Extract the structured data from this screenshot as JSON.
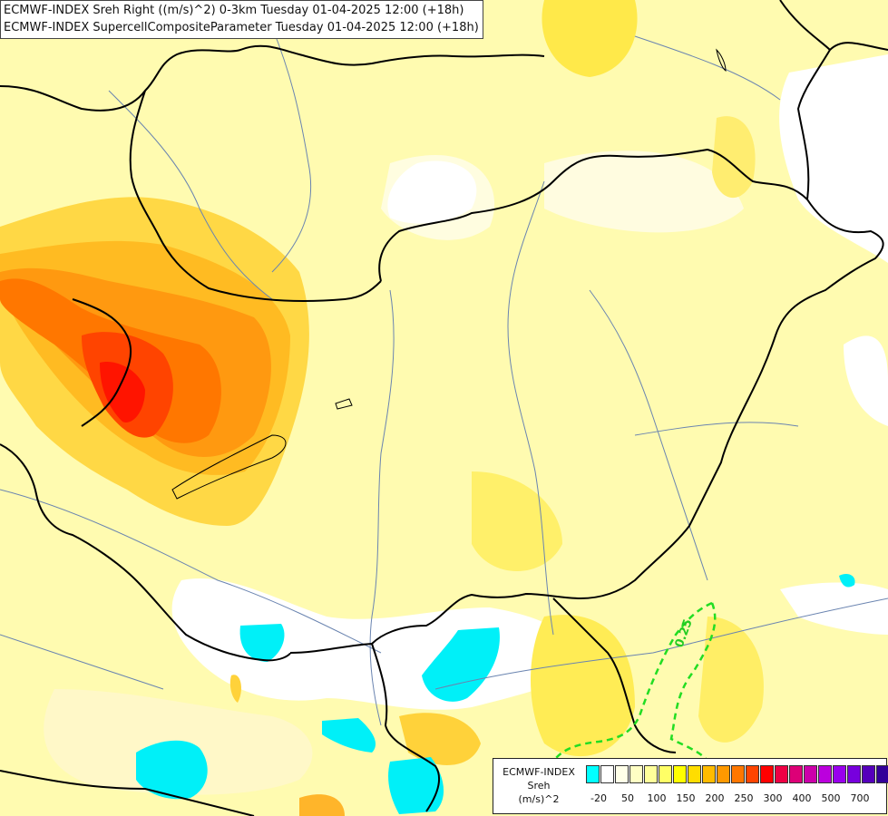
{
  "title_lines": [
    "ECMWF-INDEX Sreh Right ((m/s)^2) 0-3km Tuesday 01-04-2025 12:00 (+18h)",
    "ECMWF-INDEX SupercellCompositeParameter Tuesday 01-04-2025 12:00 (+18h)"
  ],
  "contour_label": "0.25",
  "legend": {
    "label_lines": [
      "ECMWF-INDEX",
      "Sreh",
      "(m/s)^2"
    ],
    "colors": [
      "#00ffff",
      "#ffffff",
      "#ffffe8",
      "#ffffc4",
      "#ffff9a",
      "#ffff66",
      "#ffff00",
      "#ffdd00",
      "#ffbb00",
      "#ff9900",
      "#ff7700",
      "#ff4400",
      "#ff0000",
      "#ee0044",
      "#dd0077",
      "#cc00aa",
      "#bb00dd",
      "#9900ee",
      "#7700dd",
      "#5500bb",
      "#330099",
      "#000077"
    ],
    "ticks": [
      "-20",
      "50",
      "100",
      "150",
      "200",
      "250",
      "300",
      "400",
      "500",
      "700"
    ]
  }
}
